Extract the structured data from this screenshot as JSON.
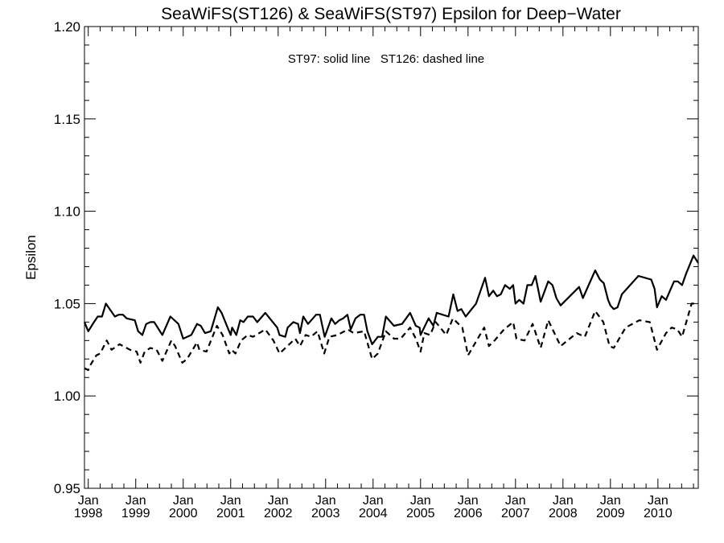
{
  "chart_data": {
    "type": "line",
    "title": "SeaWiFS(ST126) & SeaWiFS(ST97)  Epsilon for Deep−Water",
    "annotation": "ST97: solid line   ST126: dashed line",
    "xlabel": "",
    "ylabel": "Epsilon",
    "xlim": [
      1997.92,
      2010.85
    ],
    "ylim": [
      0.95,
      1.2
    ],
    "y_ticks": [
      {
        "value": 0.95,
        "label": "0.95"
      },
      {
        "value": 1.0,
        "label": "1.00"
      },
      {
        "value": 1.05,
        "label": "1.05"
      },
      {
        "value": 1.1,
        "label": "1.10"
      },
      {
        "value": 1.15,
        "label": "1.15"
      },
      {
        "value": 1.2,
        "label": "1.20"
      }
    ],
    "x_ticks": [
      {
        "value": 1998,
        "month": "Jan",
        "year": "1998"
      },
      {
        "value": 1999,
        "month": "Jan",
        "year": "1999"
      },
      {
        "value": 2000,
        "month": "Jan",
        "year": "2000"
      },
      {
        "value": 2001,
        "month": "Jan",
        "year": "2001"
      },
      {
        "value": 2002,
        "month": "Jan",
        "year": "2002"
      },
      {
        "value": 2003,
        "month": "Jan",
        "year": "2003"
      },
      {
        "value": 2004,
        "month": "Jan",
        "year": "2004"
      },
      {
        "value": 2005,
        "month": "Jan",
        "year": "2005"
      },
      {
        "value": 2006,
        "month": "Jan",
        "year": "2006"
      },
      {
        "value": 2007,
        "month": "Jan",
        "year": "2007"
      },
      {
        "value": 2008,
        "month": "Jan",
        "year": "2008"
      },
      {
        "value": 2009,
        "month": "Jan",
        "year": "2009"
      },
      {
        "value": 2010,
        "month": "Jan",
        "year": "2010"
      }
    ],
    "grid": false,
    "series": [
      {
        "name": "ST97",
        "style": "solid",
        "color": "#000000",
        "points": [
          [
            1997.92,
            1.04
          ],
          [
            1998.0,
            1.035
          ],
          [
            1998.12,
            1.04
          ],
          [
            1998.2,
            1.043
          ],
          [
            1998.29,
            1.043
          ],
          [
            1998.37,
            1.05
          ],
          [
            1998.56,
            1.043
          ],
          [
            1998.64,
            1.044
          ],
          [
            1998.73,
            1.044
          ],
          [
            1998.81,
            1.042
          ],
          [
            1998.98,
            1.041
          ],
          [
            1999.05,
            1.035
          ],
          [
            1999.14,
            1.033
          ],
          [
            1999.22,
            1.039
          ],
          [
            1999.31,
            1.04
          ],
          [
            1999.39,
            1.04
          ],
          [
            1999.56,
            1.033
          ],
          [
            1999.73,
            1.043
          ],
          [
            1999.9,
            1.039
          ],
          [
            2000.0,
            1.031
          ],
          [
            2000.17,
            1.033
          ],
          [
            2000.29,
            1.039
          ],
          [
            2000.37,
            1.038
          ],
          [
            2000.46,
            1.034
          ],
          [
            2000.58,
            1.035
          ],
          [
            2000.73,
            1.048
          ],
          [
            2000.81,
            1.045
          ],
          [
            2000.92,
            1.038
          ],
          [
            2001.0,
            1.033
          ],
          [
            2001.03,
            1.037
          ],
          [
            2001.12,
            1.033
          ],
          [
            2001.2,
            1.041
          ],
          [
            2001.27,
            1.04
          ],
          [
            2001.36,
            1.043
          ],
          [
            2001.47,
            1.043
          ],
          [
            2001.56,
            1.04
          ],
          [
            2001.73,
            1.045
          ],
          [
            2001.98,
            1.037
          ],
          [
            2002.03,
            1.033
          ],
          [
            2002.15,
            1.032
          ],
          [
            2002.2,
            1.037
          ],
          [
            2002.32,
            1.04
          ],
          [
            2002.42,
            1.039
          ],
          [
            2002.46,
            1.034
          ],
          [
            2002.53,
            1.043
          ],
          [
            2002.63,
            1.039
          ],
          [
            2002.8,
            1.044
          ],
          [
            2002.88,
            1.044
          ],
          [
            2002.98,
            1.032
          ],
          [
            2003.12,
            1.042
          ],
          [
            2003.2,
            1.039
          ],
          [
            2003.29,
            1.041
          ],
          [
            2003.37,
            1.042
          ],
          [
            2003.46,
            1.044
          ],
          [
            2003.53,
            1.036
          ],
          [
            2003.63,
            1.042
          ],
          [
            2003.73,
            1.044
          ],
          [
            2003.81,
            1.044
          ],
          [
            2003.88,
            1.035
          ],
          [
            2003.98,
            1.028
          ],
          [
            2004.1,
            1.032
          ],
          [
            2004.19,
            1.032
          ],
          [
            2004.27,
            1.043
          ],
          [
            2004.44,
            1.038
          ],
          [
            2004.61,
            1.039
          ],
          [
            2004.78,
            1.045
          ],
          [
            2004.9,
            1.038
          ],
          [
            2004.98,
            1.037
          ],
          [
            2005.0,
            1.033
          ],
          [
            2005.17,
            1.042
          ],
          [
            2005.27,
            1.038
          ],
          [
            2005.34,
            1.045
          ],
          [
            2005.59,
            1.043
          ],
          [
            2005.69,
            1.055
          ],
          [
            2005.78,
            1.046
          ],
          [
            2005.86,
            1.047
          ],
          [
            2005.95,
            1.043
          ],
          [
            2006.17,
            1.05
          ],
          [
            2006.36,
            1.064
          ],
          [
            2006.44,
            1.054
          ],
          [
            2006.53,
            1.057
          ],
          [
            2006.61,
            1.054
          ],
          [
            2006.69,
            1.055
          ],
          [
            2006.78,
            1.06
          ],
          [
            2006.88,
            1.058
          ],
          [
            2006.95,
            1.06
          ],
          [
            2007.0,
            1.05
          ],
          [
            2007.08,
            1.052
          ],
          [
            2007.17,
            1.05
          ],
          [
            2007.25,
            1.06
          ],
          [
            2007.34,
            1.06
          ],
          [
            2007.42,
            1.065
          ],
          [
            2007.53,
            1.051
          ],
          [
            2007.69,
            1.062
          ],
          [
            2007.78,
            1.06
          ],
          [
            2007.86,
            1.053
          ],
          [
            2007.95,
            1.049
          ],
          [
            2008.34,
            1.059
          ],
          [
            2008.42,
            1.053
          ],
          [
            2008.68,
            1.068
          ],
          [
            2008.78,
            1.063
          ],
          [
            2008.86,
            1.061
          ],
          [
            2008.95,
            1.052
          ],
          [
            2009.0,
            1.049
          ],
          [
            2009.07,
            1.047
          ],
          [
            2009.15,
            1.048
          ],
          [
            2009.24,
            1.055
          ],
          [
            2009.59,
            1.065
          ],
          [
            2009.86,
            1.063
          ],
          [
            2009.93,
            1.058
          ],
          [
            2009.98,
            1.048
          ],
          [
            2010.08,
            1.054
          ],
          [
            2010.17,
            1.052
          ],
          [
            2010.34,
            1.062
          ],
          [
            2010.42,
            1.062
          ],
          [
            2010.51,
            1.06
          ],
          [
            2010.59,
            1.066
          ],
          [
            2010.75,
            1.076
          ],
          [
            2010.85,
            1.072
          ]
        ]
      },
      {
        "name": "ST126",
        "style": "dashed",
        "color": "#000000",
        "points": [
          [
            1997.92,
            1.015
          ],
          [
            1998.0,
            1.014
          ],
          [
            1998.05,
            1.017
          ],
          [
            1998.17,
            1.022
          ],
          [
            1998.25,
            1.023
          ],
          [
            1998.39,
            1.03
          ],
          [
            1998.49,
            1.025
          ],
          [
            1998.66,
            1.028
          ],
          [
            1998.88,
            1.025
          ],
          [
            1999.02,
            1.024
          ],
          [
            1999.1,
            1.018
          ],
          [
            1999.19,
            1.024
          ],
          [
            1999.31,
            1.026
          ],
          [
            1999.44,
            1.025
          ],
          [
            1999.56,
            1.019
          ],
          [
            1999.75,
            1.03
          ],
          [
            1999.83,
            1.027
          ],
          [
            1999.98,
            1.018
          ],
          [
            2000.08,
            1.02
          ],
          [
            2000.29,
            1.029
          ],
          [
            2000.34,
            1.025
          ],
          [
            2000.49,
            1.024
          ],
          [
            2000.71,
            1.038
          ],
          [
            2000.83,
            1.033
          ],
          [
            2000.97,
            1.023
          ],
          [
            2001.02,
            1.025
          ],
          [
            2001.1,
            1.023
          ],
          [
            2001.22,
            1.03
          ],
          [
            2001.36,
            1.033
          ],
          [
            2001.47,
            1.032
          ],
          [
            2001.73,
            1.036
          ],
          [
            2001.9,
            1.03
          ],
          [
            2002.03,
            1.023
          ],
          [
            2002.36,
            1.031
          ],
          [
            2002.46,
            1.027
          ],
          [
            2002.58,
            1.033
          ],
          [
            2002.69,
            1.032
          ],
          [
            2002.83,
            1.035
          ],
          [
            2002.97,
            1.023
          ],
          [
            2003.08,
            1.032
          ],
          [
            2003.25,
            1.033
          ],
          [
            2003.47,
            1.036
          ],
          [
            2003.59,
            1.034
          ],
          [
            2003.81,
            1.035
          ],
          [
            2003.98,
            1.02
          ],
          [
            2004.1,
            1.023
          ],
          [
            2004.27,
            1.035
          ],
          [
            2004.44,
            1.031
          ],
          [
            2004.58,
            1.031
          ],
          [
            2004.78,
            1.037
          ],
          [
            2004.9,
            1.031
          ],
          [
            2005.0,
            1.024
          ],
          [
            2005.08,
            1.034
          ],
          [
            2005.2,
            1.033
          ],
          [
            2005.32,
            1.04
          ],
          [
            2005.54,
            1.033
          ],
          [
            2005.68,
            1.042
          ],
          [
            2005.88,
            1.037
          ],
          [
            2006.0,
            1.022
          ],
          [
            2006.34,
            1.037
          ],
          [
            2006.44,
            1.027
          ],
          [
            2006.56,
            1.03
          ],
          [
            2006.76,
            1.036
          ],
          [
            2006.95,
            1.04
          ],
          [
            2007.02,
            1.031
          ],
          [
            2007.19,
            1.03
          ],
          [
            2007.36,
            1.039
          ],
          [
            2007.53,
            1.026
          ],
          [
            2007.69,
            1.041
          ],
          [
            2007.95,
            1.027
          ],
          [
            2008.29,
            1.034
          ],
          [
            2008.46,
            1.032
          ],
          [
            2008.68,
            1.046
          ],
          [
            2008.85,
            1.04
          ],
          [
            2008.98,
            1.027
          ],
          [
            2009.07,
            1.026
          ],
          [
            2009.32,
            1.037
          ],
          [
            2009.61,
            1.041
          ],
          [
            2009.83,
            1.04
          ],
          [
            2009.98,
            1.025
          ],
          [
            2010.17,
            1.034
          ],
          [
            2010.29,
            1.037
          ],
          [
            2010.41,
            1.036
          ],
          [
            2010.51,
            1.032
          ],
          [
            2010.71,
            1.05
          ],
          [
            2010.85,
            1.05
          ]
        ]
      }
    ]
  }
}
